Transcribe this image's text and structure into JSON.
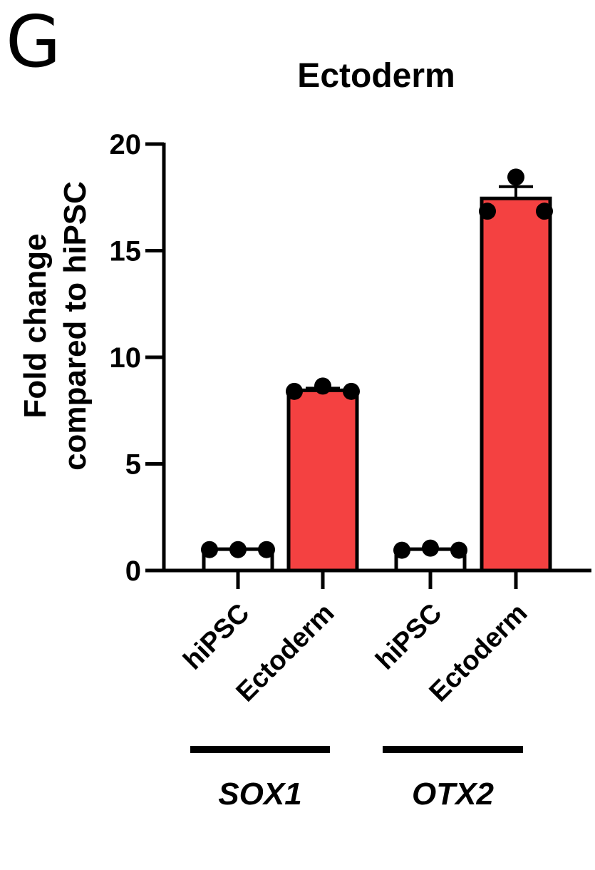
{
  "panel_label": "G",
  "chart_data": {
    "type": "bar",
    "title": "Ectoderm",
    "ylabel_lines": [
      "Fold change",
      "compared to hiPSC"
    ],
    "xlabel": "",
    "ylim": [
      0,
      20
    ],
    "yticks": [
      0,
      5,
      10,
      15,
      20
    ],
    "categories": [
      "hiPSC",
      "Ectoderm",
      "hiPSC",
      "Ectoderm"
    ],
    "groups": [
      {
        "label": "SOX1",
        "categories": [
          0,
          1
        ]
      },
      {
        "label": "OTX2",
        "categories": [
          2,
          3
        ]
      }
    ],
    "values": [
      1.0,
      8.45,
      1.0,
      17.45
    ],
    "errors": [
      0.0,
      0.1,
      0.0,
      0.55
    ],
    "points": [
      [
        0.98,
        0.98,
        0.98
      ],
      [
        8.4,
        8.65,
        8.4
      ],
      [
        0.95,
        1.05,
        0.95
      ],
      [
        16.85,
        18.45,
        16.85
      ]
    ],
    "colors": [
      "#ffffff",
      "#f44141",
      "#ffffff",
      "#f44141"
    ],
    "grid": false,
    "legend": "none"
  }
}
